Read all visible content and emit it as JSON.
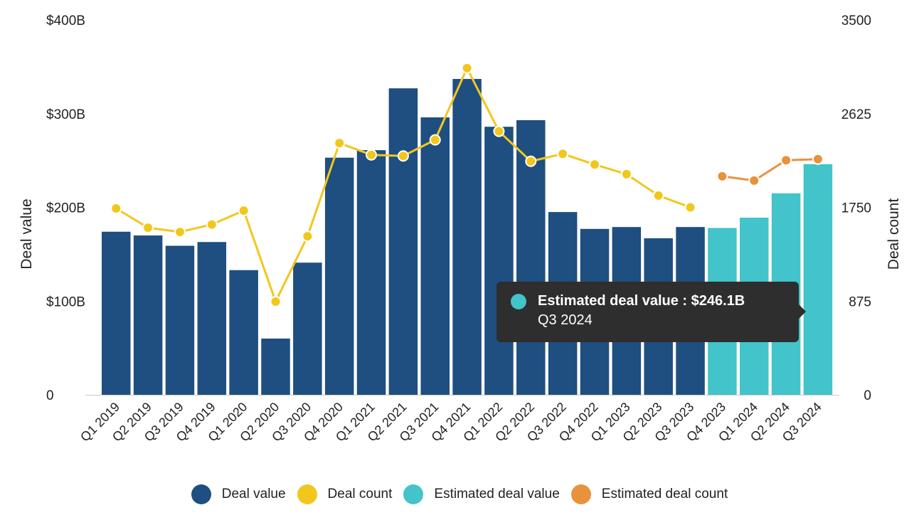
{
  "chart_data": {
    "type": "bar",
    "categories": [
      "Q1 2019",
      "Q2 2019",
      "Q3 2019",
      "Q4 2019",
      "Q1 2020",
      "Q2 2020",
      "Q3 2020",
      "Q4 2020",
      "Q1 2021",
      "Q2 2021",
      "Q3 2021",
      "Q4 2021",
      "Q1 2022",
      "Q2 2022",
      "Q3 2022",
      "Q4 2022",
      "Q1 2023",
      "Q2 2023",
      "Q3 2023",
      "Q4 2023",
      "Q1 2024",
      "Q2 2024",
      "Q3 2024"
    ],
    "series": [
      {
        "name": "Deal value",
        "type": "bar",
        "axis": "left",
        "color": "#1f4e80",
        "values": [
          174,
          170,
          159,
          163,
          133,
          60,
          141,
          253,
          261,
          327,
          296,
          337,
          286,
          293,
          195,
          177,
          179,
          167,
          179,
          null,
          null,
          null,
          null
        ]
      },
      {
        "name": "Deal count",
        "type": "line",
        "axis": "right",
        "color": "#f2c71d",
        "values": [
          1740,
          1560,
          1520,
          1590,
          1720,
          870,
          1480,
          2350,
          2240,
          2230,
          2380,
          3050,
          2460,
          2180,
          2250,
          2150,
          2060,
          1860,
          1750,
          null,
          null,
          null,
          null
        ]
      },
      {
        "name": "Estimated deal value",
        "type": "bar",
        "axis": "left",
        "color": "#43c3ca",
        "values": [
          null,
          null,
          null,
          null,
          null,
          null,
          null,
          null,
          null,
          null,
          null,
          null,
          null,
          null,
          null,
          null,
          null,
          null,
          null,
          178,
          189,
          215,
          246.1
        ]
      },
      {
        "name": "Estimated deal count",
        "type": "line",
        "axis": "right",
        "color": "#e8923b",
        "values": [
          null,
          null,
          null,
          null,
          null,
          null,
          null,
          null,
          null,
          null,
          null,
          null,
          null,
          null,
          null,
          null,
          null,
          null,
          null,
          2040,
          2000,
          2190,
          2200
        ]
      }
    ],
    "y_left": {
      "label": "Deal value",
      "range": [
        0,
        400
      ],
      "ticks": [
        "0",
        "$100B",
        "$200B",
        "$300B",
        "$400B"
      ]
    },
    "y_right": {
      "label": "Deal count",
      "range": [
        0,
        3500
      ],
      "ticks": [
        "0",
        "875",
        "1750",
        "2625",
        "3500"
      ]
    },
    "legend_position": "bottom",
    "grid": false
  },
  "legend": [
    "Deal value",
    "Deal count",
    "Estimated deal value",
    "Estimated deal count"
  ],
  "tooltip": {
    "title": "Estimated deal value : $246.1B",
    "subtitle": "Q3 2024",
    "color": "#43c3ca"
  }
}
